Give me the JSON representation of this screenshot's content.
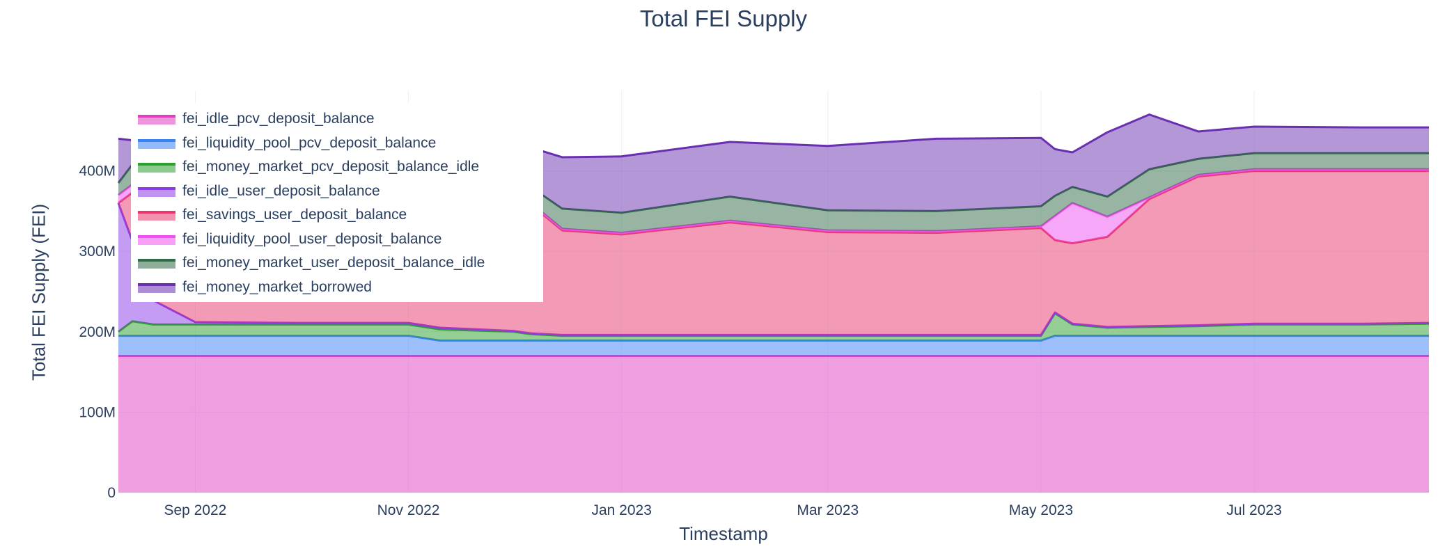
{
  "chart_data": {
    "type": "area",
    "stacked": true,
    "title": "Total FEI Supply",
    "xlabel": "Timestamp",
    "ylabel": "Total FEI Supply (FEI)",
    "x_range": [
      "2022-08-10",
      "2023-08-20"
    ],
    "ylim": [
      0,
      500000000
    ],
    "y_ticks": [
      {
        "value": 0,
        "label": "0"
      },
      {
        "value": 100000000,
        "label": "100M"
      },
      {
        "value": 200000000,
        "label": "200M"
      },
      {
        "value": 300000000,
        "label": "300M"
      },
      {
        "value": 400000000,
        "label": "400M"
      }
    ],
    "x_ticks": [
      {
        "value": "2022-09-01",
        "label": "Sep 2022"
      },
      {
        "value": "2022-11-01",
        "label": "Nov 2022"
      },
      {
        "value": "2023-01-01",
        "label": "Jan 2023"
      },
      {
        "value": "2023-03-01",
        "label": "Mar 2023"
      },
      {
        "value": "2023-05-01",
        "label": "May 2023"
      },
      {
        "value": "2023-07-01",
        "label": "Jul 2023"
      }
    ],
    "grid": true,
    "legend_position": "top-left",
    "x": [
      "2022-08-10",
      "2022-08-14",
      "2022-08-20",
      "2022-09-01",
      "2022-10-01",
      "2022-11-01",
      "2022-11-10",
      "2022-12-01",
      "2022-12-06",
      "2022-12-15",
      "2023-01-01",
      "2023-02-01",
      "2023-03-01",
      "2023-04-01",
      "2023-05-01",
      "2023-05-05",
      "2023-05-10",
      "2023-05-20",
      "2023-06-01",
      "2023-06-15",
      "2023-07-01",
      "2023-08-01",
      "2023-08-20"
    ],
    "series": [
      {
        "name": "fei_idle_pcv_deposit_balance",
        "color": "#e040c0",
        "values": [
          170,
          170,
          170,
          170,
          170,
          170,
          170,
          170,
          170,
          170,
          170,
          170,
          170,
          170,
          170,
          170,
          170,
          170,
          170,
          170,
          170,
          170,
          170
        ]
      },
      {
        "name": "fei_liquidity_pool_pcv_deposit_balance",
        "color": "#3b82f6",
        "values": [
          25,
          25,
          25,
          25,
          25,
          25,
          19,
          19,
          19,
          19,
          19,
          19,
          19,
          19,
          19,
          25,
          25,
          25,
          25,
          25,
          25,
          25,
          25
        ]
      },
      {
        "name": "fei_money_market_pcv_deposit_balance_idle",
        "color": "#2ca02c",
        "values": [
          5,
          18,
          14,
          14,
          14,
          14,
          14,
          11,
          8,
          6,
          6,
          6,
          6,
          6,
          6,
          28,
          14,
          10,
          11,
          12,
          14,
          14,
          15
        ]
      },
      {
        "name": "fei_idle_user_deposit_balance",
        "color": "#8b3ae8",
        "values": [
          160,
          100,
          30,
          3,
          2,
          2,
          2,
          1,
          1,
          1,
          1,
          1,
          1,
          1,
          1,
          1,
          1,
          1,
          1,
          1,
          1,
          1,
          1
        ]
      },
      {
        "name": "fei_savings_user_deposit_balance",
        "color": "#e8386e",
        "values": [
          0,
          60,
          120,
          195,
          195,
          195,
          195,
          195,
          160,
          130,
          125,
          140,
          128,
          127,
          133,
          90,
          100,
          112,
          158,
          185,
          190,
          190,
          189
        ]
      },
      {
        "name": "fei_liquidity_pool_user_deposit_balance",
        "color": "#f050f0",
        "values": [
          10,
          10,
          10,
          2,
          2,
          2,
          2,
          2,
          2,
          2,
          2,
          2,
          2,
          2,
          2,
          30,
          50,
          25,
          2,
          2,
          2,
          2,
          2
        ]
      },
      {
        "name": "fei_money_market_user_deposit_balance_idle",
        "color": "#2f6b45",
        "values": [
          15,
          25,
          25,
          25,
          25,
          25,
          25,
          20,
          20,
          25,
          25,
          30,
          25,
          25,
          25,
          25,
          20,
          25,
          35,
          20,
          20,
          20,
          20
        ]
      },
      {
        "name": "fei_money_market_borrowed",
        "color": "#6a2fb0",
        "values": [
          55,
          30,
          40,
          45,
          45,
          45,
          45,
          27,
          49,
          64,
          70,
          68,
          80,
          90,
          85,
          58,
          43,
          80,
          68,
          34,
          33,
          32,
          32
        ]
      }
    ]
  }
}
